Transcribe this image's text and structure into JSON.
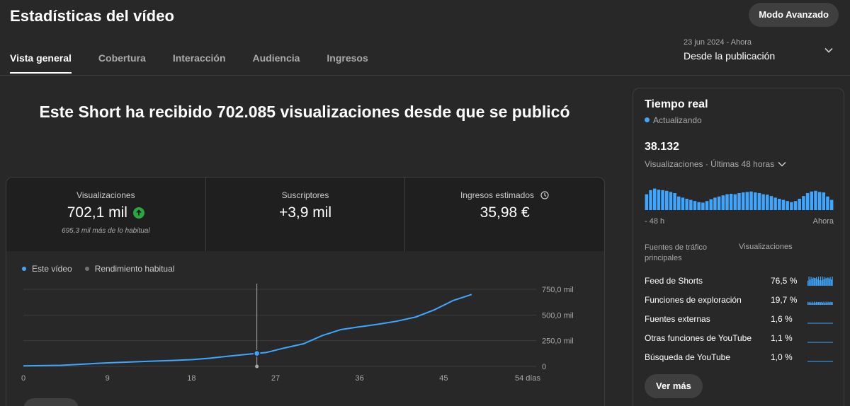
{
  "header": {
    "title": "Estadísticas del vídeo",
    "advanced_button": "Modo Avanzado"
  },
  "tabs": [
    {
      "label": "Vista general"
    },
    {
      "label": "Cobertura"
    },
    {
      "label": "Interacción"
    },
    {
      "label": "Audiencia"
    },
    {
      "label": "Ingresos"
    }
  ],
  "date_range": {
    "dates": "23 jun 2024 - Ahora",
    "label": "Desde la publicación"
  },
  "headline": "Este Short ha recibido 702.085 visualizaciones desde que se publicó",
  "metrics": [
    {
      "label": "Visualizaciones",
      "value": "702,1 mil",
      "note": "695,3 mil más de lo habitual"
    },
    {
      "label": "Suscriptores",
      "value": "+3,9 mil"
    },
    {
      "label": "Ingresos estimados",
      "value": "35,98 €"
    }
  ],
  "legend": {
    "this_video": "Este vídeo",
    "typical": "Rendimiento habitual"
  },
  "colors": {
    "accent": "#3ea6ff",
    "positive": "#2ba640",
    "background": "#282828"
  },
  "chart_data": {
    "type": "line",
    "x": [
      0,
      2,
      4,
      6,
      8,
      10,
      12,
      14,
      16,
      18,
      20,
      22,
      24,
      26,
      28,
      30,
      32,
      34,
      36,
      38,
      40,
      42,
      44,
      46,
      48
    ],
    "series": [
      {
        "name": "Este vídeo",
        "values": [
          5,
          8,
          10,
          20,
          30,
          38,
          45,
          52,
          58,
          65,
          80,
          100,
          118,
          135,
          180,
          220,
          300,
          358,
          385,
          410,
          440,
          480,
          550,
          640,
          700
        ]
      }
    ],
    "x_ticks": [
      "0",
      "9",
      "18",
      "27",
      "36",
      "45",
      "54 días"
    ],
    "x_tick_values": [
      0,
      9,
      18,
      27,
      36,
      45,
      54
    ],
    "y_ticks": [
      "0",
      "250,0 mil",
      "500,0 mil",
      "750,0 mil"
    ],
    "y_tick_values": [
      0,
      250,
      500,
      750
    ],
    "xlim": [
      0,
      54
    ],
    "ylim": [
      0,
      750
    ],
    "marker_x": 25,
    "grid": true
  },
  "realtime": {
    "title": "Tiempo real",
    "status": "Actualizando",
    "count": "38.132",
    "subtitle": "Visualizaciones · Últimas 48 horas",
    "axis_start": "- 48 h",
    "axis_end": "Ahora",
    "bars": [
      0.7,
      0.88,
      0.95,
      0.9,
      0.88,
      0.85,
      0.8,
      0.75,
      0.6,
      0.55,
      0.5,
      0.45,
      0.4,
      0.35,
      0.33,
      0.4,
      0.48,
      0.55,
      0.6,
      0.65,
      0.7,
      0.72,
      0.7,
      0.75,
      0.78,
      0.8,
      0.82,
      0.78,
      0.75,
      0.7,
      0.68,
      0.62,
      0.55,
      0.5,
      0.45,
      0.4,
      0.35,
      0.4,
      0.5,
      0.62,
      0.75,
      0.82,
      0.85,
      0.8,
      0.78,
      0.6,
      0.45
    ],
    "table_header": {
      "source": "Fuentes de tráfico principales",
      "views": "Visualizaciones"
    },
    "rows": [
      {
        "source": "Feed de Shorts",
        "pct": "76,5 %",
        "spark": "dense"
      },
      {
        "source": "Funciones de exploración",
        "pct": "19,7 %",
        "spark": "small"
      },
      {
        "source": "Fuentes externas",
        "pct": "1,6 %",
        "spark": "flat"
      },
      {
        "source": "Otras funciones de YouTube",
        "pct": "1,1 %",
        "spark": "flat"
      },
      {
        "source": "Búsqueda de YouTube",
        "pct": "1,0 %",
        "spark": "flat"
      }
    ],
    "button": "Ver más"
  }
}
